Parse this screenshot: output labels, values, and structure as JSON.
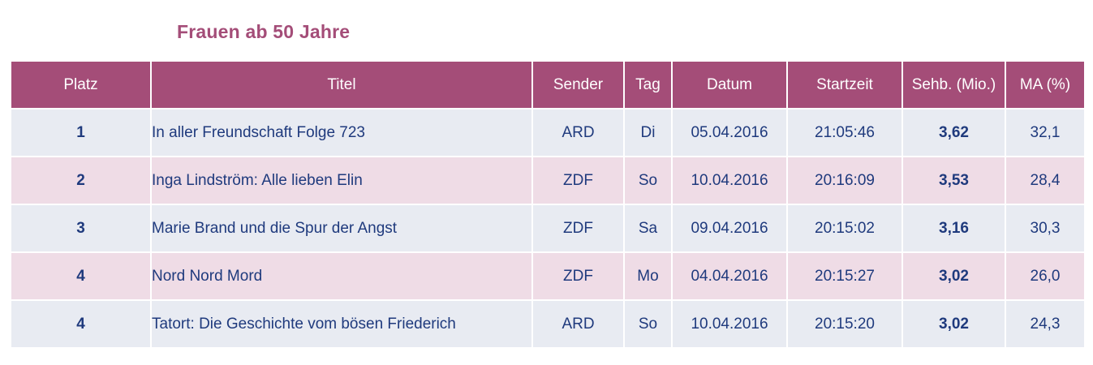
{
  "title": "Frauen ab 50 Jahre",
  "colors": {
    "header_bg": "#a44d78",
    "title_text": "#a44d78",
    "row_odd_bg": "#e8ebf2",
    "row_even_bg": "#efdce6",
    "cell_text": "#1f3a7d"
  },
  "table": {
    "headers": [
      "Platz",
      "Titel",
      "Sender",
      "Tag",
      "Datum",
      "Startzeit",
      "Sehb. (Mio.)",
      "MA (%)"
    ],
    "rows": [
      {
        "platz": "1",
        "titel": "In aller Freundschaft Folge 723",
        "sender": "ARD",
        "tag": "Di",
        "datum": "05.04.2016",
        "startzeit": "21:05:46",
        "sehb": "3,62",
        "ma": "32,1"
      },
      {
        "platz": "2",
        "titel": "Inga Lindström: Alle lieben Elin",
        "sender": "ZDF",
        "tag": "So",
        "datum": "10.04.2016",
        "startzeit": "20:16:09",
        "sehb": "3,53",
        "ma": "28,4"
      },
      {
        "platz": "3",
        "titel": "Marie Brand und die Spur der Angst",
        "sender": "ZDF",
        "tag": "Sa",
        "datum": "09.04.2016",
        "startzeit": "20:15:02",
        "sehb": "3,16",
        "ma": "30,3"
      },
      {
        "platz": "4",
        "titel": "Nord Nord Mord",
        "sender": "ZDF",
        "tag": "Mo",
        "datum": "04.04.2016",
        "startzeit": "20:15:27",
        "sehb": "3,02",
        "ma": "26,0"
      },
      {
        "platz": "4",
        "titel": "Tatort: Die Geschichte vom bösen Friederich",
        "sender": "ARD",
        "tag": "So",
        "datum": "10.04.2016",
        "startzeit": "20:15:20",
        "sehb": "3,02",
        "ma": "24,3"
      }
    ]
  }
}
